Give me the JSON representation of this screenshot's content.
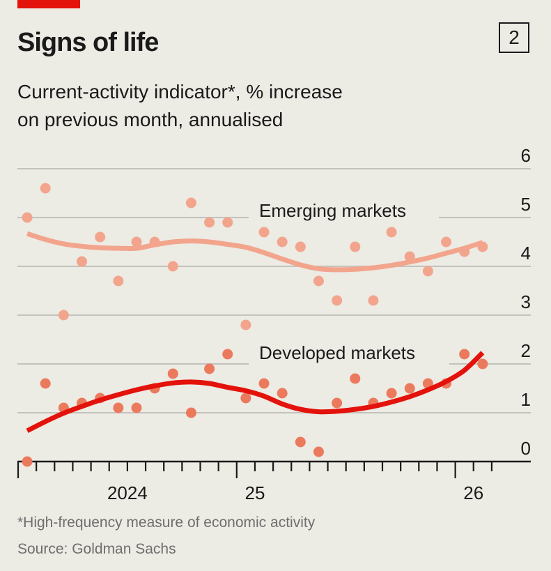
{
  "header": {
    "title": "Signs of life",
    "subtitle_line1": "Current-activity indicator*, % increase",
    "subtitle_line2": "on previous month, annualised",
    "chart_number": "2"
  },
  "footer": {
    "footnote": "*High-frequency measure of economic activity",
    "source": "Source: Goldman Sachs"
  },
  "colors": {
    "accent": "#e3120b",
    "emerging": "#f2a58c",
    "developed_line": "#e3120b",
    "developed_dots": "#eb7a5d",
    "grid": "#c4c2bc",
    "axis": "#1a1a1a"
  },
  "chart_data": {
    "type": "scatter",
    "title": "Signs of life",
    "subtitle": "Current-activity indicator*, % increase on previous month, annualised",
    "xlabel": "",
    "ylabel": "",
    "ylim": [
      0,
      6
    ],
    "yticks": [
      "0",
      "1",
      "2",
      "3",
      "4",
      "5",
      "6"
    ],
    "y_axis_side": "right",
    "grid": true,
    "x_tick_labels": [
      {
        "label": "2024",
        "year_start_index": 0
      },
      {
        "label": "25",
        "year_start_index": 12
      },
      {
        "label": "26",
        "year_start_index": 24
      }
    ],
    "x": [
      "2024-01",
      "2024-02",
      "2024-03",
      "2024-04",
      "2024-05",
      "2024-06",
      "2024-07",
      "2024-08",
      "2024-09",
      "2024-10",
      "2024-11",
      "2024-12",
      "2025-01",
      "2025-02",
      "2025-03",
      "2025-04",
      "2025-05",
      "2025-06",
      "2025-07",
      "2025-08",
      "2025-09",
      "2025-10",
      "2025-11",
      "2025-12",
      "2026-01",
      "2026-02"
    ],
    "series": [
      {
        "name": "Emerging markets",
        "label": "Emerging markets",
        "kind": "scatter+trend",
        "values": [
          5.0,
          5.6,
          3.0,
          4.1,
          4.6,
          3.7,
          4.5,
          4.5,
          4.0,
          5.3,
          4.9,
          4.9,
          2.8,
          4.7,
          4.5,
          4.4,
          3.7,
          3.3,
          4.4,
          3.3,
          4.7,
          4.2,
          3.9,
          4.5,
          4.3,
          4.4
        ],
        "trend": [
          4.67,
          4.55,
          4.46,
          4.41,
          4.38,
          4.37,
          4.37,
          4.44,
          4.5,
          4.52,
          4.5,
          4.45,
          4.39,
          4.28,
          4.15,
          4.03,
          3.95,
          3.93,
          3.94,
          3.97,
          4.02,
          4.09,
          4.17,
          4.27,
          4.37,
          4.49
        ]
      },
      {
        "name": "Developed markets",
        "label": "Developed markets",
        "kind": "scatter+trend",
        "values": [
          0.0,
          1.6,
          1.1,
          1.2,
          1.3,
          1.1,
          1.1,
          1.5,
          1.8,
          1.0,
          1.9,
          2.2,
          1.3,
          1.6,
          1.4,
          0.4,
          0.2,
          1.2,
          1.7,
          1.2,
          1.4,
          1.5,
          1.6,
          1.6,
          2.2,
          2.0
        ],
        "trend": [
          0.63,
          0.82,
          0.99,
          1.13,
          1.26,
          1.37,
          1.47,
          1.55,
          1.61,
          1.63,
          1.6,
          1.52,
          1.45,
          1.34,
          1.18,
          1.07,
          1.02,
          1.03,
          1.07,
          1.13,
          1.22,
          1.33,
          1.47,
          1.64,
          1.87,
          2.23
        ]
      }
    ]
  }
}
